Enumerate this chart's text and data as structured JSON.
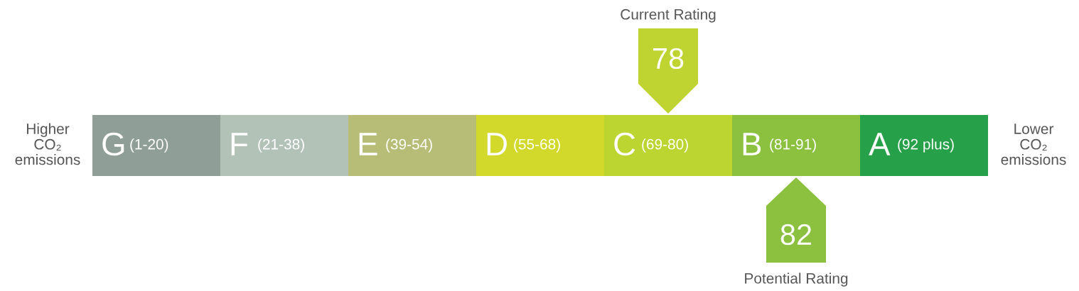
{
  "chart_data": {
    "type": "other",
    "categories": [
      "G",
      "F",
      "E",
      "D",
      "C",
      "B",
      "A"
    ],
    "value_labels": [
      "(1-20)",
      "(21-38)",
      "(39-54)",
      "(55-68)",
      "(69-80)",
      "(81-91)",
      "(92 plus)"
    ],
    "colors": [
      "#8f9e96",
      "#b3c2b7",
      "#b7bd76",
      "#d2d92a",
      "#bcd530",
      "#8cc140",
      "#27a04a"
    ],
    "series": [
      {
        "name": "Current Rating",
        "color": "#bfd430",
        "values": [
          null,
          null,
          null,
          null,
          78,
          null,
          null
        ]
      },
      {
        "name": "Potential Rating",
        "color": "#8cc140",
        "values": [
          null,
          null,
          null,
          null,
          null,
          82,
          null
        ]
      }
    ],
    "data_labels": true,
    "annotations": [
      "Higher\nCO₂\nemissions",
      "Lower\nCO₂\nemissions"
    ]
  }
}
